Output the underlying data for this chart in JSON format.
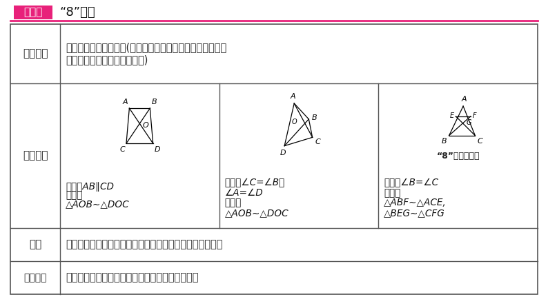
{
  "title_box_text": "模型二",
  "title_text": "“8”字型",
  "title_box_color": "#e8217a",
  "title_line_color": "#e8217a",
  "bg_color": "#ffffff",
  "table_border_color": "#555555",
  "row1_label": "类型依据",
  "row2_label": "衍生模型",
  "row3_label": "特征",
  "row4_label": "证明过程",
  "row1_line1": "相似三角形的判定定理(有两个角对应相等或两边对应成比例",
  "row1_line2": "且夹角相等的两个三角形相似)",
  "row3_content": "两个三角形有一个公共顶点，且夹这个角的两边互为延长线",
  "row4_content": "再证另一组对角相等或夹这个角的两边对应成比例",
  "sc1_cond": "条件：AB∥CD",
  "sc1_conc1": "结论：",
  "sc1_conc2": "△AOB∼△DOC",
  "sc2_cond1": "条件：∠C=∠B或",
  "sc2_cond2": "∠A=∠D",
  "sc2_conc1": "结论：",
  "sc2_conc2": "△AOB∼△DOC",
  "sc3_cond1": "条件：∠B=∠C",
  "sc3_conc1": "结论：",
  "sc3_conc2": "△ABF∼△ACE,",
  "sc3_conc3": "△BEG∼△CFG",
  "sc3_label": "“8”字型的变形"
}
